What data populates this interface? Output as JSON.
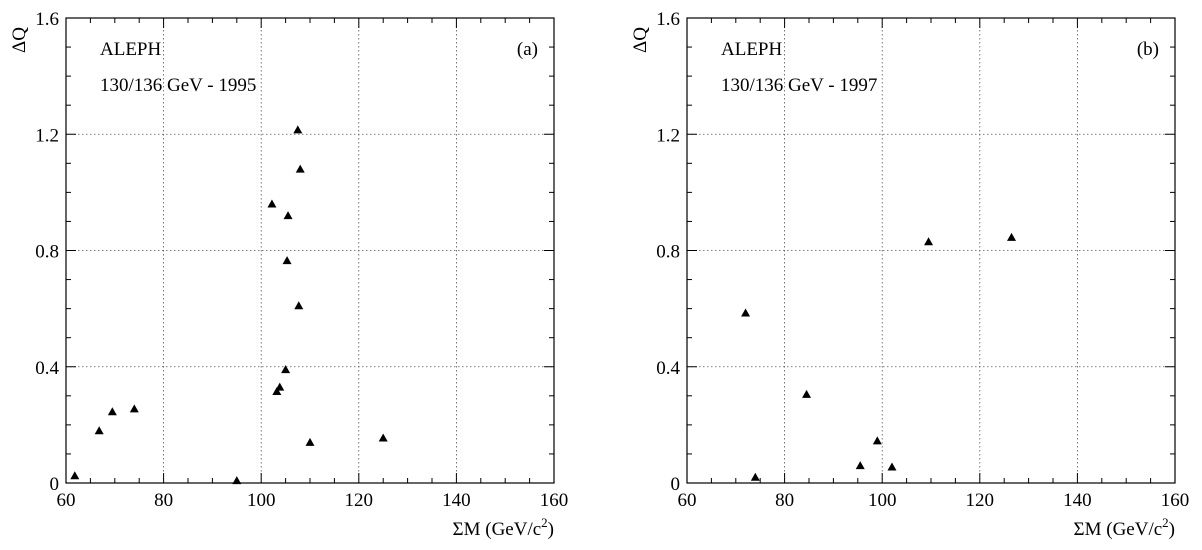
{
  "chart_data": [
    {
      "type": "scatter",
      "panel_tag": "(a)",
      "annotation_lines": [
        "ALEPH",
        "130/136 GeV - 1995"
      ],
      "xlabel": "ΣM (GeV/c",
      "xlabel_sup": "2",
      "xlabel_close": ")",
      "ylabel": "ΔQ",
      "xlim": [
        60,
        160
      ],
      "ylim": [
        0,
        1.6
      ],
      "xticks": [
        "60",
        "80",
        "100",
        "120",
        "140",
        "160"
      ],
      "yticks": [
        "0",
        "0.4",
        "0.8",
        "1.2",
        "1.6"
      ],
      "grid": true,
      "marker": "filled-triangle",
      "points": [
        {
          "x": 61.8,
          "y": 0.025
        },
        {
          "x": 66.8,
          "y": 0.18
        },
        {
          "x": 69.5,
          "y": 0.245
        },
        {
          "x": 74.0,
          "y": 0.255
        },
        {
          "x": 95.0,
          "y": 0.008
        },
        {
          "x": 102.2,
          "y": 0.96
        },
        {
          "x": 103.2,
          "y": 0.315
        },
        {
          "x": 103.8,
          "y": 0.33
        },
        {
          "x": 105.0,
          "y": 0.39
        },
        {
          "x": 105.3,
          "y": 0.765
        },
        {
          "x": 105.5,
          "y": 0.92
        },
        {
          "x": 107.5,
          "y": 1.215
        },
        {
          "x": 107.7,
          "y": 0.61
        },
        {
          "x": 108.0,
          "y": 1.08
        },
        {
          "x": 110.0,
          "y": 0.14
        },
        {
          "x": 125.0,
          "y": 0.155
        }
      ]
    },
    {
      "type": "scatter",
      "panel_tag": "(b)",
      "annotation_lines": [
        "ALEPH",
        "130/136 GeV - 1997"
      ],
      "xlabel": "ΣM (GeV/c",
      "xlabel_sup": "2",
      "xlabel_close": ")",
      "ylabel": "ΔQ",
      "xlim": [
        60,
        160
      ],
      "ylim": [
        0,
        1.6
      ],
      "xticks": [
        "60",
        "80",
        "100",
        "120",
        "140",
        "160"
      ],
      "yticks": [
        "0",
        "0.4",
        "0.8",
        "1.2",
        "1.6"
      ],
      "grid": true,
      "marker": "filled-triangle",
      "points": [
        {
          "x": 72.0,
          "y": 0.585
        },
        {
          "x": 74.0,
          "y": 0.02
        },
        {
          "x": 84.5,
          "y": 0.305
        },
        {
          "x": 95.5,
          "y": 0.06
        },
        {
          "x": 99.0,
          "y": 0.145
        },
        {
          "x": 102.0,
          "y": 0.055
        },
        {
          "x": 109.5,
          "y": 0.83
        },
        {
          "x": 126.5,
          "y": 0.845
        }
      ]
    }
  ]
}
